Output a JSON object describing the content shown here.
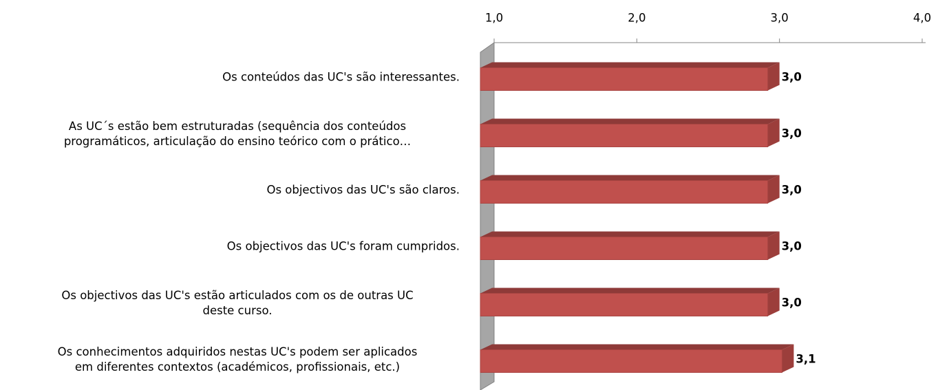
{
  "chart_data": {
    "type": "bar",
    "orientation": "horizontal",
    "categories": [
      "Os conteúdos das UC's são interessantes.",
      "As UC´s estão bem estruturadas (sequência dos conteúdos\nprogramáticos, articulação do ensino teórico com o prático…",
      "Os objectivos das UC's são claros.",
      "Os objectivos das UC's foram cumpridos.",
      "Os objectivos das UC's estão articulados com os de outras UC\ndeste curso.",
      "Os conhecimentos adquiridos nestas UC's podem ser aplicados\nem diferentes contextos (académicos, profissionais, etc.)"
    ],
    "values": [
      3.0,
      3.0,
      3.0,
      3.0,
      3.0,
      3.1
    ],
    "value_labels": [
      "3,0",
      "3,0",
      "3,0",
      "3,0",
      "3,0",
      "3,1"
    ],
    "color": "#c0504d",
    "xlim": [
      1,
      4
    ],
    "xticks": [
      {
        "value": 1,
        "label": "1,0"
      },
      {
        "value": 2,
        "label": "2,0"
      },
      {
        "value": 3,
        "label": "3,0"
      },
      {
        "value": 4,
        "label": "4,0"
      }
    ]
  }
}
